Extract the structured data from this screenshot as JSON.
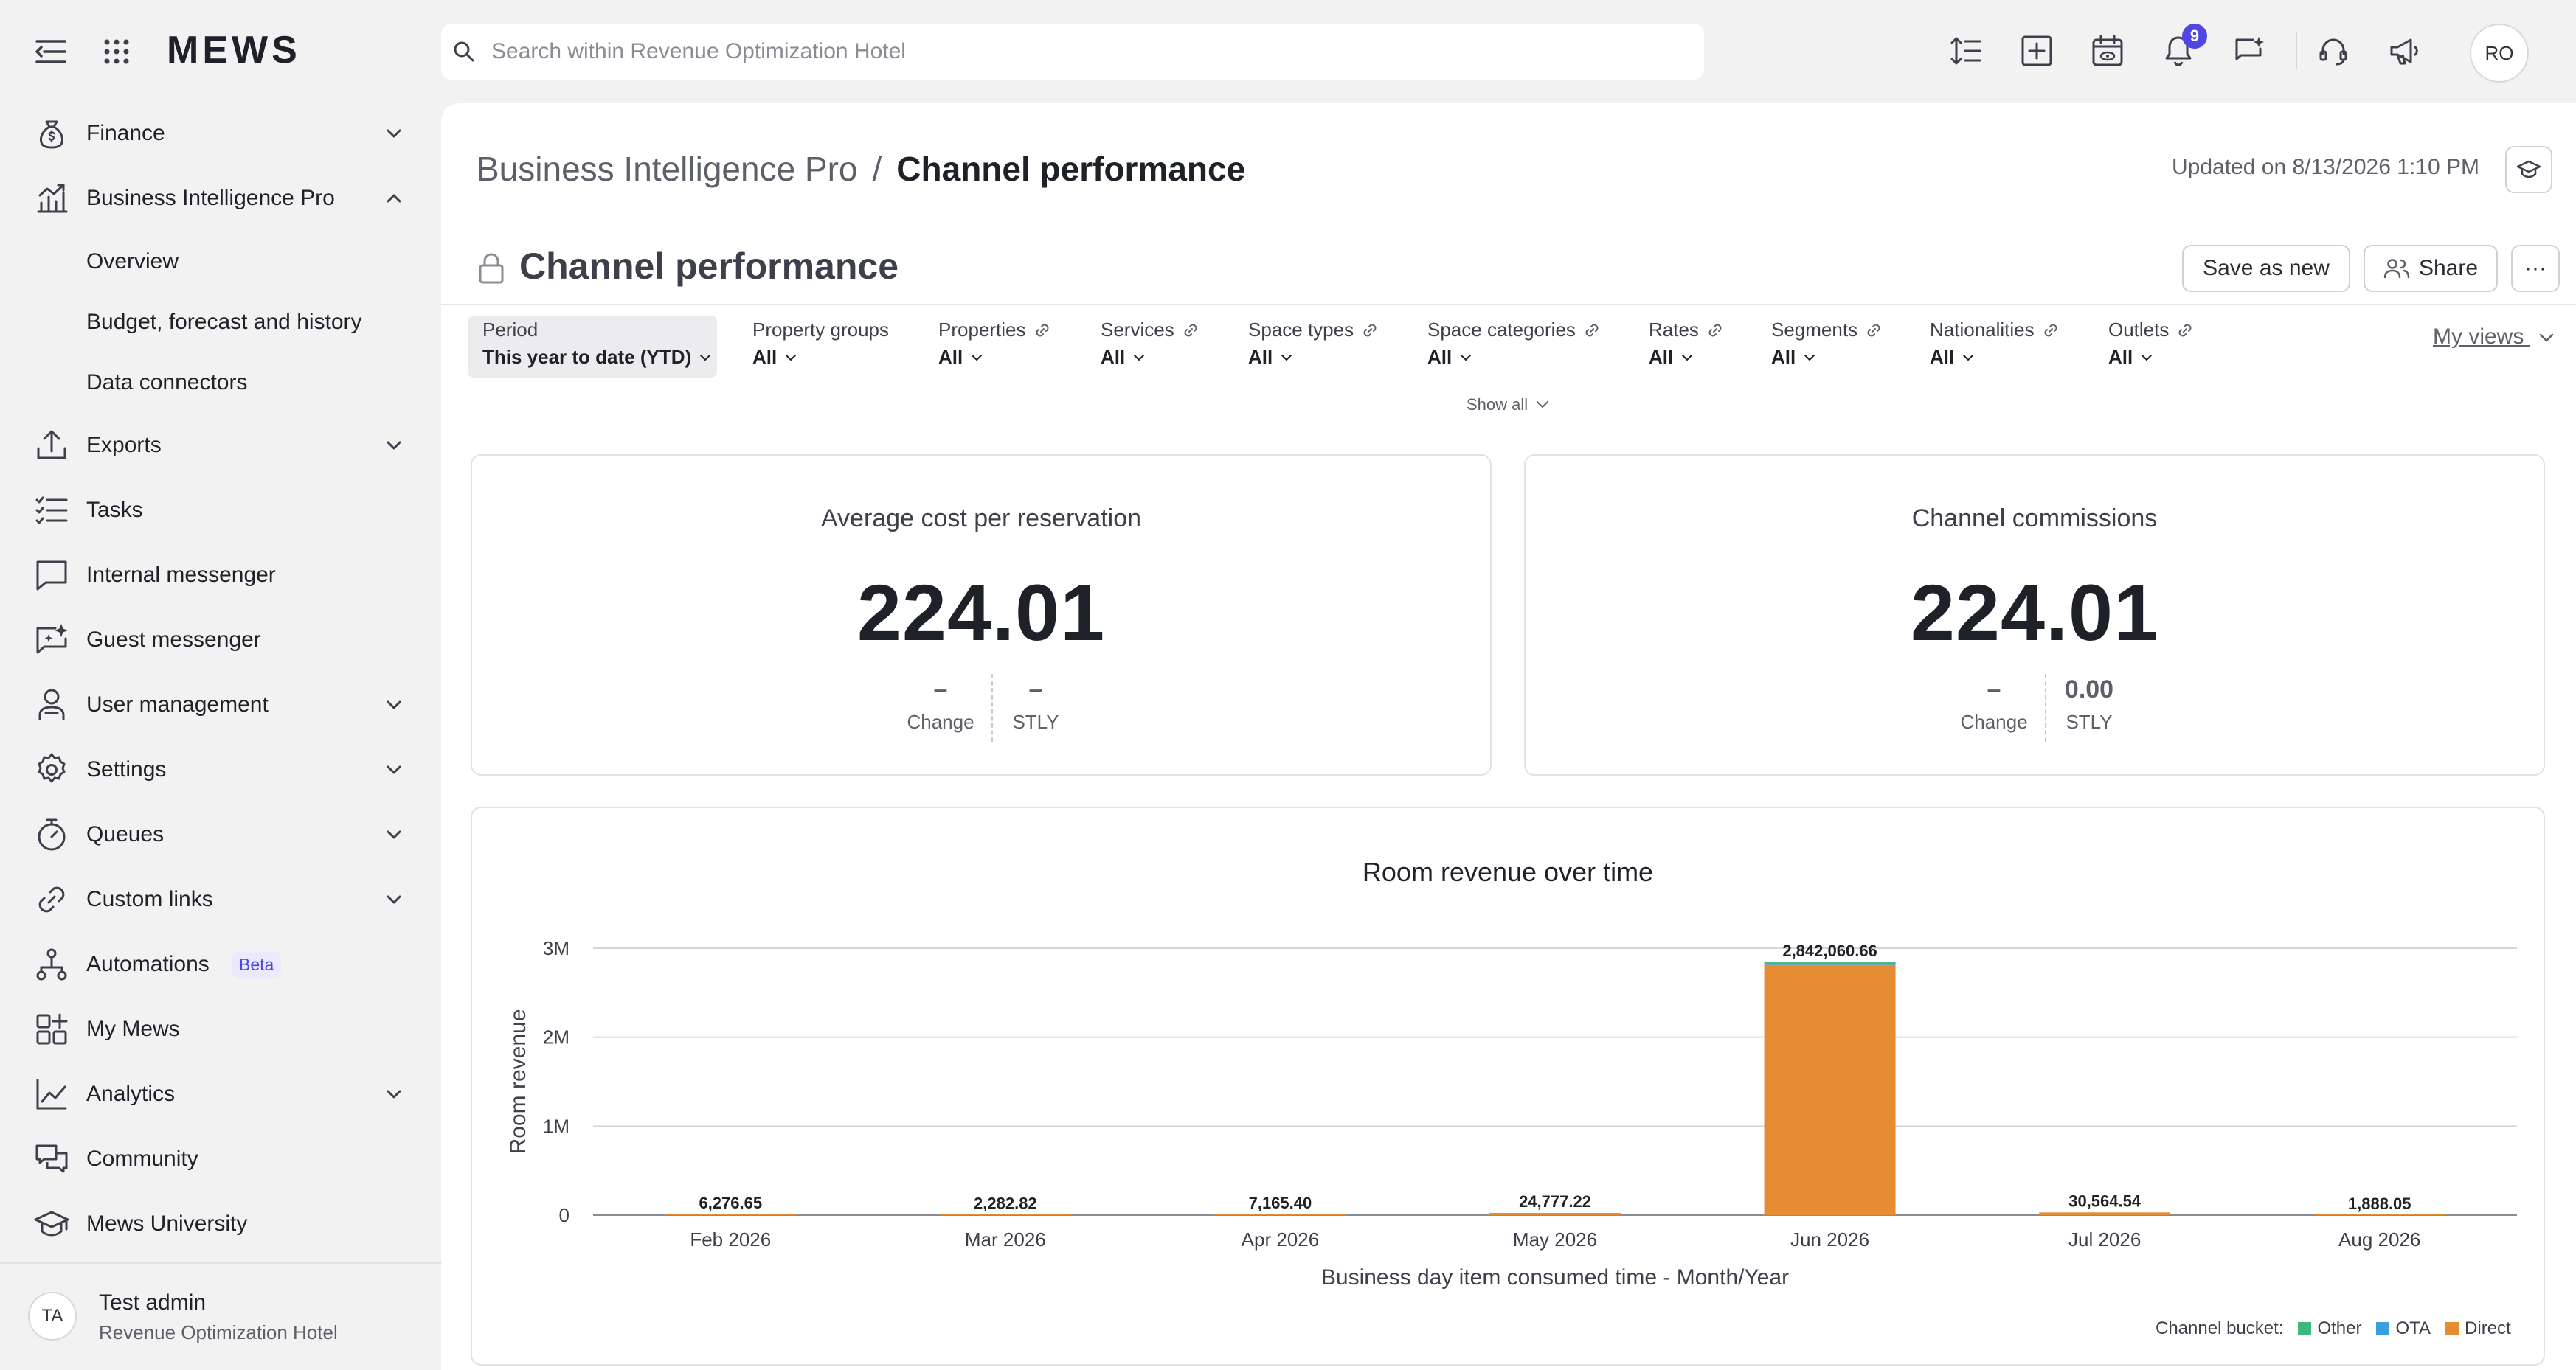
{
  "app": {
    "logo": "MEWS",
    "search_placeholder": "Search within Revenue Optimization Hotel",
    "notifications_count": "9",
    "user_initials": "RO"
  },
  "sidebar": {
    "items": [
      {
        "label": "Finance",
        "icon": "money-bag-icon",
        "chevron": "down"
      },
      {
        "label": "Business Intelligence Pro",
        "icon": "chart-trend-icon",
        "chevron": "up"
      },
      {
        "label": "Overview",
        "sub": true
      },
      {
        "label": "Budget, forecast and history",
        "sub": true
      },
      {
        "label": "Data connectors",
        "sub": true
      },
      {
        "label": "Exports",
        "icon": "upload-icon",
        "chevron": "down"
      },
      {
        "label": "Tasks",
        "icon": "checklist-icon"
      },
      {
        "label": "Internal messenger",
        "icon": "chat-icon"
      },
      {
        "label": "Guest messenger",
        "icon": "sparkle-chat-icon"
      },
      {
        "label": "User management",
        "icon": "user-icon",
        "chevron": "down"
      },
      {
        "label": "Settings",
        "icon": "gear-icon",
        "chevron": "down"
      },
      {
        "label": "Queues",
        "icon": "stopwatch-icon",
        "chevron": "down"
      },
      {
        "label": "Custom links",
        "icon": "link-icon",
        "chevron": "down"
      },
      {
        "label": "Automations",
        "icon": "flow-icon",
        "badge": "Beta"
      },
      {
        "label": "My Mews",
        "icon": "widgets-icon"
      },
      {
        "label": "Analytics",
        "icon": "line-chart-icon",
        "chevron": "down"
      },
      {
        "label": "Community",
        "icon": "community-icon"
      },
      {
        "label": "Mews University",
        "icon": "graduation-cap-icon"
      }
    ],
    "footer": {
      "initials": "TA",
      "name": "Test admin",
      "hotel": "Revenue Optimization Hotel"
    }
  },
  "header": {
    "breadcrumb_parent": "Business Intelligence Pro",
    "breadcrumb_sep": "/",
    "breadcrumb_current": "Channel performance",
    "updated": "Updated on 8/13/2026 1:10 PM",
    "report_title": "Channel performance",
    "save_as_new": "Save as new",
    "share": "Share",
    "more": "···"
  },
  "filters": [
    {
      "label": "Period",
      "value": "This year to date (YTD)",
      "linked": false
    },
    {
      "label": "Property groups",
      "value": "All",
      "linked": false
    },
    {
      "label": "Properties",
      "value": "All",
      "linked": true
    },
    {
      "label": "Services",
      "value": "All",
      "linked": true
    },
    {
      "label": "Space types",
      "value": "All",
      "linked": true
    },
    {
      "label": "Space categories",
      "value": "All",
      "linked": true
    },
    {
      "label": "Rates",
      "value": "All",
      "linked": true
    },
    {
      "label": "Segments",
      "value": "All",
      "linked": true
    },
    {
      "label": "Nationalities",
      "value": "All",
      "linked": true
    },
    {
      "label": "Outlets",
      "value": "All",
      "linked": true
    }
  ],
  "filters_extra": {
    "my_views": "My views",
    "show_all": "Show all"
  },
  "kpis": [
    {
      "title": "Average cost per reservation",
      "value": "224.01",
      "change_value": "–",
      "change_label": "Change",
      "stly_value": "–",
      "stly_label": "STLY"
    },
    {
      "title": "Channel commissions",
      "value": "224.01",
      "change_value": "–",
      "change_label": "Change",
      "stly_value": "0.00",
      "stly_label": "STLY"
    }
  ],
  "chart_data": {
    "type": "bar",
    "title": "Room revenue over time",
    "xlabel": "Business day item consumed time - Month/Year",
    "ylabel": "Room revenue",
    "categories": [
      "Feb 2026",
      "Mar 2026",
      "Apr 2026",
      "May 2026",
      "Jun 2026",
      "Jul 2026",
      "Aug 2026"
    ],
    "totals_labels": [
      "6,276.65",
      "2,282.82",
      "7,165.40",
      "24,777.22",
      "2,842,060.66",
      "30,564.54",
      "1,888.05"
    ],
    "series": [
      {
        "name": "Other",
        "color": "#3cb97a",
        "values": [
          0,
          0,
          0,
          0,
          20000,
          0,
          0
        ]
      },
      {
        "name": "OTA",
        "color": "#3b9ede",
        "values": [
          0,
          0,
          0,
          0,
          10000,
          0,
          0
        ]
      },
      {
        "name": "Direct",
        "color": "#e68c32",
        "values": [
          6276.65,
          2282.82,
          7165.4,
          24777.22,
          2812060.66,
          30564.54,
          1888.05
        ]
      }
    ],
    "y_ticks": [
      {
        "value": 0,
        "label": "0"
      },
      {
        "value": 1000000,
        "label": "1M"
      },
      {
        "value": 2000000,
        "label": "2M"
      },
      {
        "value": 3000000,
        "label": "3M"
      }
    ],
    "ylim": [
      0,
      3000000
    ],
    "grid": true,
    "legend_title": "Channel bucket:",
    "legend_position": "bottom-right"
  }
}
